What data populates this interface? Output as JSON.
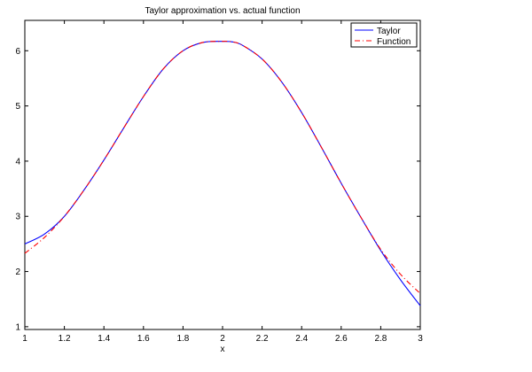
{
  "chart_data": {
    "type": "line",
    "title": "Taylor approximation vs. actual function",
    "xlabel": "x",
    "ylabel": "",
    "xlim": [
      1,
      3
    ],
    "ylim": [
      0.95,
      6.55
    ],
    "grid": false,
    "legend_position": "top-right",
    "x_ticks": [
      1,
      1.2,
      1.4,
      1.6,
      1.8,
      2,
      2.2,
      2.4,
      2.6,
      2.8,
      3
    ],
    "x_tick_labels": [
      "1",
      "1.2",
      "1.4",
      "1.6",
      "1.8",
      "2",
      "2.2",
      "2.4",
      "2.6",
      "2.8",
      "3"
    ],
    "y_ticks": [
      1,
      2,
      3,
      4,
      5,
      6
    ],
    "y_tick_labels": [
      "1",
      "2",
      "3",
      "4",
      "5",
      "6"
    ],
    "x": [
      1.0,
      1.1,
      1.2,
      1.3,
      1.4,
      1.5,
      1.6,
      1.7,
      1.8,
      1.9,
      2.0,
      2.05,
      2.1,
      2.2,
      2.3,
      2.4,
      2.5,
      2.6,
      2.7,
      2.8,
      2.9,
      3.0
    ],
    "series": [
      {
        "name": "Taylor",
        "color": "#0000ff",
        "dash": "solid",
        "values": [
          2.5,
          2.68,
          3.0,
          3.48,
          4.02,
          4.6,
          5.17,
          5.67,
          6.0,
          6.15,
          6.17,
          6.16,
          6.1,
          5.85,
          5.43,
          4.88,
          4.25,
          3.6,
          2.98,
          2.38,
          1.85,
          1.38
        ]
      },
      {
        "name": "Function",
        "color": "#ff0000",
        "dash": "dashdot",
        "values": [
          2.33,
          2.62,
          3.0,
          3.48,
          4.02,
          4.6,
          5.17,
          5.67,
          6.0,
          6.15,
          6.17,
          6.16,
          6.1,
          5.85,
          5.43,
          4.88,
          4.25,
          3.6,
          2.98,
          2.4,
          1.95,
          1.6
        ]
      }
    ]
  }
}
